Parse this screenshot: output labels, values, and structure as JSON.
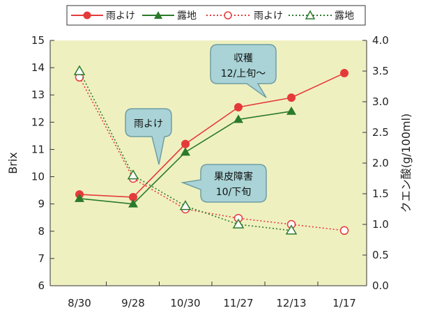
{
  "chart_data": {
    "type": "line",
    "categories": [
      "8/30",
      "9/28",
      "10/30",
      "11/27",
      "12/13",
      "1/17"
    ],
    "ylabel_left": "Brix",
    "ylabel_right": "クエン酸(g/100ml)",
    "ylim_left": [
      6,
      15
    ],
    "ylim_right": [
      0.0,
      4.0
    ],
    "yticks_left": [
      "6",
      "7",
      "8",
      "9",
      "10",
      "11",
      "12",
      "13",
      "14",
      "15"
    ],
    "yticks_right": [
      "0.0",
      "0.5",
      "1.0",
      "1.5",
      "2.0",
      "2.5",
      "3.0",
      "3.5",
      "4.0"
    ],
    "grid": false,
    "legend_position": "top",
    "colors": {
      "plot_bg": "#eff0c0",
      "red": "#e53a3a",
      "green": "#2a7a2a",
      "callout_fill": "#a9d3d6",
      "callout_stroke": "#6f9ea2"
    },
    "series": [
      {
        "name": "雨よけ",
        "axis": "left",
        "style": "solid",
        "marker": "circle-filled",
        "color": "#e53a3a",
        "values": [
          9.35,
          9.25,
          11.2,
          12.55,
          12.9,
          13.8
        ]
      },
      {
        "name": "露地",
        "axis": "left",
        "style": "solid",
        "marker": "triangle-filled",
        "color": "#2a7a2a",
        "values": [
          9.2,
          9.0,
          10.9,
          12.1,
          12.4,
          null
        ]
      },
      {
        "name": "雨よけ",
        "axis": "right",
        "style": "dotted",
        "marker": "circle-open",
        "color": "#e53a3a",
        "values": [
          3.4,
          1.75,
          1.25,
          1.1,
          1.0,
          0.9
        ]
      },
      {
        "name": "露地",
        "axis": "right",
        "style": "dotted",
        "marker": "triangle-open",
        "color": "#2a7a2a",
        "values": [
          3.5,
          1.8,
          1.3,
          1.0,
          0.9,
          null
        ]
      }
    ],
    "annotations": [
      {
        "lines": [
          "収穫",
          "12/上旬〜"
        ]
      },
      {
        "lines": [
          "雨よけ"
        ]
      },
      {
        "lines": [
          "果皮障害",
          "10/下旬"
        ]
      }
    ]
  }
}
